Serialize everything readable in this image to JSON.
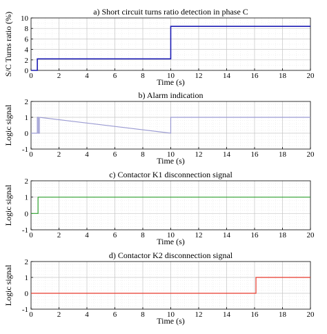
{
  "chart_data": [
    {
      "type": "line",
      "title": "a) Short circuit turns ratio detection in phase C",
      "xlabel": "Time (s)",
      "ylabel": "S/C Turns ratio (%)",
      "xlim": [
        0,
        20
      ],
      "ylim": [
        0,
        10
      ],
      "xticks": [
        0,
        2,
        4,
        6,
        8,
        10,
        12,
        14,
        16,
        18,
        20
      ],
      "yticks": [
        0,
        2,
        4,
        6,
        8,
        10
      ],
      "grid": true,
      "color": "#1c1cb4",
      "series": [
        {
          "x": [
            0,
            0.45,
            0.45,
            10,
            10,
            20
          ],
          "y": [
            0,
            0,
            2.2,
            2.2,
            8.4,
            8.4
          ]
        }
      ]
    },
    {
      "type": "line",
      "title": "b) Alarm indication",
      "xlabel": "Time (s)",
      "ylabel": "Logic signal",
      "xlim": [
        0,
        20
      ],
      "ylim": [
        -1,
        2
      ],
      "xticks": [
        0,
        2,
        4,
        6,
        8,
        10,
        12,
        14,
        16,
        18,
        20
      ],
      "yticks": [
        -1,
        0,
        1,
        2
      ],
      "grid": true,
      "color": "#9a9ad2",
      "series": [
        {
          "x": [
            0,
            0.45,
            0.45,
            0.52,
            0.52,
            0.6,
            0.6,
            10,
            10,
            20
          ],
          "y": [
            0,
            0,
            1,
            1,
            0,
            0,
            1,
            0,
            1,
            1
          ]
        }
      ]
    },
    {
      "type": "line",
      "title": "c) Contactor K1 disconnection signal",
      "xlabel": "Time (s)",
      "ylabel": "Logic signal",
      "xlim": [
        0,
        20
      ],
      "ylim": [
        -1,
        2
      ],
      "xticks": [
        0,
        2,
        4,
        6,
        8,
        10,
        12,
        14,
        16,
        18,
        20
      ],
      "yticks": [
        -1,
        0,
        1,
        2
      ],
      "grid": true,
      "color": "#2ca02c",
      "series": [
        {
          "x": [
            0,
            0.5,
            0.5,
            20
          ],
          "y": [
            0,
            0,
            1,
            1
          ]
        }
      ]
    },
    {
      "type": "line",
      "title": "d) Contactor K2 disconnection signal",
      "xlabel": "Time (s)",
      "ylabel": "Logic signal",
      "xlim": [
        0,
        20
      ],
      "ylim": [
        -1,
        2
      ],
      "xticks": [
        0,
        2,
        4,
        6,
        8,
        10,
        12,
        14,
        16,
        18,
        20
      ],
      "yticks": [
        -1,
        0,
        1,
        2
      ],
      "grid": true,
      "color": "#e8382b",
      "series": [
        {
          "x": [
            0,
            16.1,
            16.1,
            20
          ],
          "y": [
            0,
            0,
            1,
            1
          ]
        }
      ]
    }
  ]
}
